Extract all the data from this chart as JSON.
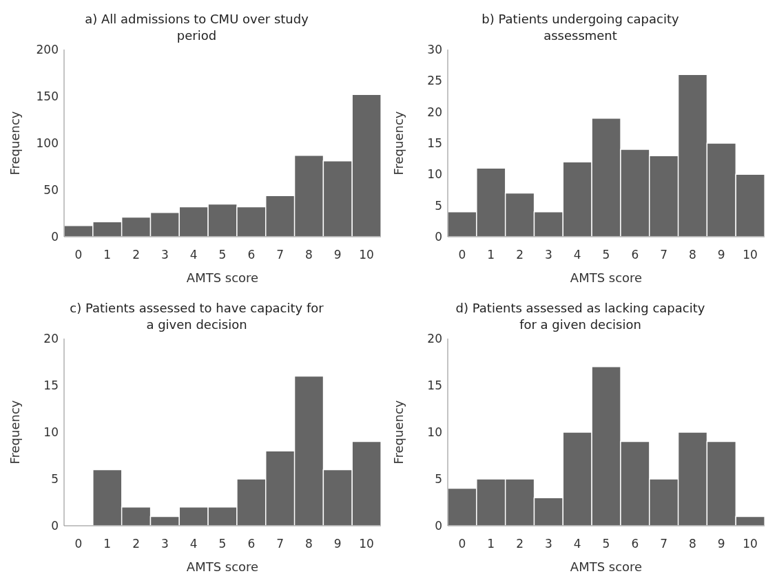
{
  "chart_data": [
    {
      "type": "bar",
      "title": "a) All admissions to CMU over study period",
      "xlabel": "AMTS score",
      "ylabel": "Frequency",
      "categories": [
        "0",
        "1",
        "2",
        "3",
        "4",
        "5",
        "6",
        "7",
        "8",
        "9",
        "10"
      ],
      "values": [
        12,
        16,
        21,
        26,
        32,
        35,
        32,
        44,
        87,
        81,
        152
      ],
      "color": "#656565",
      "ylim": [
        0,
        200
      ],
      "yticks": [
        0,
        50,
        100,
        150,
        200
      ],
      "grid": false,
      "legend": false
    },
    {
      "type": "bar",
      "title": "b) Patients undergoing capacity assessment",
      "xlabel": "AMTS score",
      "ylabel": "Frequency",
      "categories": [
        "0",
        "1",
        "2",
        "3",
        "4",
        "5",
        "6",
        "7",
        "8",
        "9",
        "10"
      ],
      "values": [
        4,
        11,
        7,
        4,
        12,
        19,
        14,
        13,
        26,
        15,
        10
      ],
      "color": "#656565",
      "ylim": [
        0,
        30
      ],
      "yticks": [
        0,
        5,
        10,
        15,
        20,
        25,
        30
      ],
      "grid": false,
      "legend": false
    },
    {
      "type": "bar",
      "title": "c) Patients assessed to have capacity for a given decision",
      "xlabel": "AMTS score",
      "ylabel": "Frequency",
      "categories": [
        "0",
        "1",
        "2",
        "3",
        "4",
        "5",
        "6",
        "7",
        "8",
        "9",
        "10"
      ],
      "values": [
        0,
        6,
        2,
        1,
        2,
        2,
        5,
        8,
        16,
        6,
        9
      ],
      "color": "#656565",
      "ylim": [
        0,
        20
      ],
      "yticks": [
        0,
        5,
        10,
        15,
        20
      ],
      "grid": false,
      "legend": false
    },
    {
      "type": "bar",
      "title": "d) Patients assessed as lacking capacity for a given decision",
      "xlabel": "AMTS score",
      "ylabel": "Frequency",
      "categories": [
        "0",
        "1",
        "2",
        "3",
        "4",
        "5",
        "6",
        "7",
        "8",
        "9",
        "10"
      ],
      "values": [
        4,
        5,
        5,
        3,
        10,
        17,
        9,
        5,
        10,
        9,
        1
      ],
      "color": "#656565",
      "ylim": [
        0,
        20
      ],
      "yticks": [
        0,
        5,
        10,
        15,
        20
      ],
      "grid": false,
      "legend": false
    }
  ]
}
